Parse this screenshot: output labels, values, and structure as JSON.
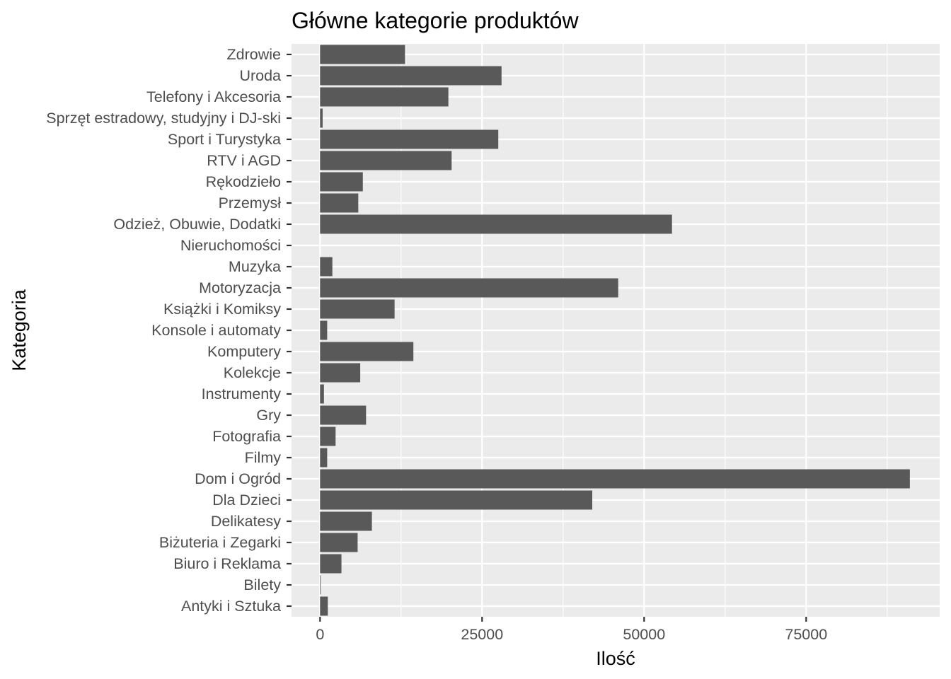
{
  "chart_data": {
    "type": "bar",
    "orientation": "horizontal",
    "title": "Główne kategorie produktów",
    "xlabel": "Ilość",
    "ylabel": "Kategoria",
    "categories": [
      "Zdrowie",
      "Uroda",
      "Telefony i Akcesoria",
      "Sprzęt estradowy, studyjny i DJ-ski",
      "Sport i Turystyka",
      "RTV i AGD",
      "Rękodzieło",
      "Przemysł",
      "Odzież, Obuwie, Dodatki",
      "Nieruchomości",
      "Muzyka",
      "Motoryzacja",
      "Książki i Komiksy",
      "Konsole i automaty",
      "Komputery",
      "Kolekcje",
      "Instrumenty",
      "Gry",
      "Fotografia",
      "Filmy",
      "Dom i Ogród",
      "Dla Dzieci",
      "Delikatesy",
      "Biżuteria i Zegarki",
      "Biuro i Reklama",
      "Bilety",
      "Antyki i Sztuka"
    ],
    "values": [
      13100,
      28000,
      19800,
      400,
      27500,
      20300,
      6600,
      5900,
      54300,
      0,
      1900,
      46000,
      11500,
      1100,
      14400,
      6200,
      600,
      7100,
      2400,
      1100,
      91000,
      42000,
      8000,
      5800,
      3300,
      100,
      1200
    ],
    "xlim": [
      -4400,
      95600
    ],
    "xticks": [
      0,
      25000,
      50000,
      75000
    ],
    "xtick_labels": [
      "0",
      "25000",
      "50000",
      "75000"
    ],
    "grid": true,
    "bar_color": "#595959",
    "panel_color": "#ebebeb"
  }
}
